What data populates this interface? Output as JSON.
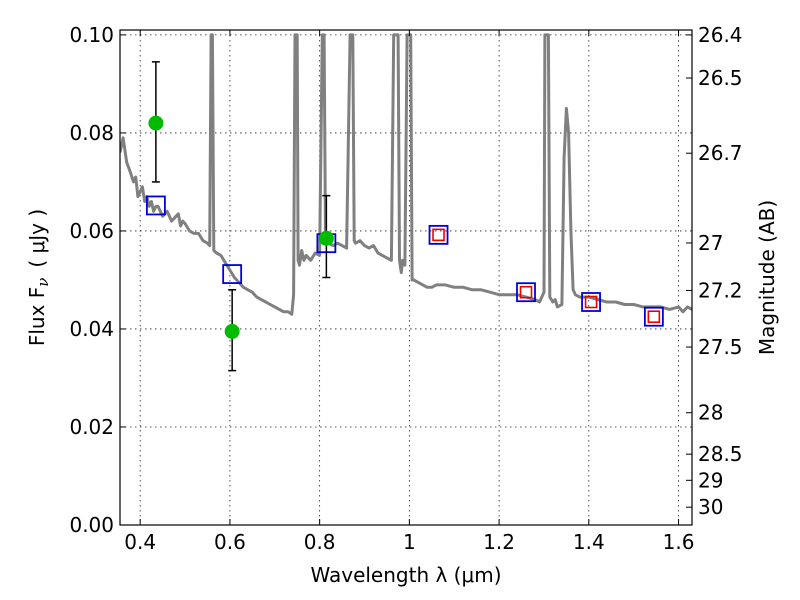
{
  "chart_data": {
    "type": "scatter",
    "xlabel": "Wavelength  λ (μm)",
    "ylabel": "Flux  F",
    "ylabel_sub": "ν",
    "ylabel_unit": "( μJy )",
    "y2label": "Magnitude (AB)",
    "xlim": [
      0.355,
      1.63
    ],
    "ylim": [
      0.0,
      0.101
    ],
    "grid": true,
    "x_ticks": [
      {
        "value": 0.4,
        "label": "0.4"
      },
      {
        "value": 0.6,
        "label": "0.6"
      },
      {
        "value": 0.8,
        "label": "0.8"
      },
      {
        "value": 1.0,
        "label": "1"
      },
      {
        "value": 1.2,
        "label": "1.2"
      },
      {
        "value": 1.4,
        "label": "1.4"
      },
      {
        "value": 1.6,
        "label": "1.6"
      }
    ],
    "y_ticks": [
      {
        "value": 0.0,
        "label": "0.00"
      },
      {
        "value": 0.02,
        "label": "0.02"
      },
      {
        "value": 0.04,
        "label": "0.04"
      },
      {
        "value": 0.06,
        "label": "0.06"
      },
      {
        "value": 0.08,
        "label": "0.08"
      },
      {
        "value": 0.1,
        "label": "0.10"
      }
    ],
    "y2_ticks": [
      {
        "value": 26.4,
        "label": "26.4"
      },
      {
        "value": 26.5,
        "label": "26.5"
      },
      {
        "value": 26.7,
        "label": "26.7"
      },
      {
        "value": 27.0,
        "label": "27"
      },
      {
        "value": 27.2,
        "label": "27.2"
      },
      {
        "value": 27.5,
        "label": "27.5"
      },
      {
        "value": 28.0,
        "label": "28"
      },
      {
        "value": 28.5,
        "label": "28.5"
      },
      {
        "value": 29.0,
        "label": "29"
      },
      {
        "value": 30.0,
        "label": "30"
      }
    ],
    "template_spectrum": {
      "color": "#808080",
      "points": [
        [
          0.355,
          0.076
        ],
        [
          0.362,
          0.079
        ],
        [
          0.37,
          0.074
        ],
        [
          0.378,
          0.072
        ],
        [
          0.385,
          0.07
        ],
        [
          0.39,
          0.071
        ],
        [
          0.395,
          0.067
        ],
        [
          0.4,
          0.068
        ],
        [
          0.405,
          0.069
        ],
        [
          0.41,
          0.066
        ],
        [
          0.415,
          0.067
        ],
        [
          0.42,
          0.065
        ],
        [
          0.425,
          0.066
        ],
        [
          0.43,
          0.064
        ],
        [
          0.435,
          0.065
        ],
        [
          0.44,
          0.065
        ],
        [
          0.45,
          0.063
        ],
        [
          0.46,
          0.064
        ],
        [
          0.47,
          0.062
        ],
        [
          0.48,
          0.063
        ],
        [
          0.485,
          0.0635
        ],
        [
          0.49,
          0.061
        ],
        [
          0.495,
          0.062
        ],
        [
          0.5,
          0.0615
        ],
        [
          0.51,
          0.06
        ],
        [
          0.52,
          0.0595
        ],
        [
          0.53,
          0.0595
        ],
        [
          0.54,
          0.058
        ],
        [
          0.55,
          0.0575
        ],
        [
          0.555,
          0.057
        ],
        [
          0.558,
          0.1
        ],
        [
          0.561,
          0.1
        ],
        [
          0.564,
          0.056
        ],
        [
          0.57,
          0.0555
        ],
        [
          0.58,
          0.055
        ],
        [
          0.59,
          0.0535
        ],
        [
          0.6,
          0.052
        ],
        [
          0.61,
          0.0505
        ],
        [
          0.62,
          0.0495
        ],
        [
          0.63,
          0.0485
        ],
        [
          0.64,
          0.048
        ],
        [
          0.65,
          0.0475
        ],
        [
          0.66,
          0.0465
        ],
        [
          0.67,
          0.046
        ],
        [
          0.68,
          0.0455
        ],
        [
          0.69,
          0.045
        ],
        [
          0.7,
          0.0445
        ],
        [
          0.71,
          0.044
        ],
        [
          0.72,
          0.0435
        ],
        [
          0.73,
          0.0435
        ],
        [
          0.738,
          0.043
        ],
        [
          0.742,
          0.047
        ],
        [
          0.745,
          0.1
        ],
        [
          0.75,
          0.1
        ],
        [
          0.752,
          0.054
        ],
        [
          0.755,
          0.053
        ],
        [
          0.76,
          0.056
        ],
        [
          0.765,
          0.054
        ],
        [
          0.77,
          0.055
        ],
        [
          0.78,
          0.054
        ],
        [
          0.79,
          0.0555
        ],
        [
          0.8,
          0.055
        ],
        [
          0.806,
          0.1
        ],
        [
          0.81,
          0.1
        ],
        [
          0.813,
          0.058
        ],
        [
          0.82,
          0.0575
        ],
        [
          0.83,
          0.057
        ],
        [
          0.84,
          0.0575
        ],
        [
          0.85,
          0.057
        ],
        [
          0.86,
          0.0565
        ],
        [
          0.868,
          0.1
        ],
        [
          0.874,
          0.1
        ],
        [
          0.877,
          0.058
        ],
        [
          0.88,
          0.0575
        ],
        [
          0.89,
          0.058
        ],
        [
          0.9,
          0.057
        ],
        [
          0.91,
          0.0565
        ],
        [
          0.92,
          0.057
        ],
        [
          0.93,
          0.0555
        ],
        [
          0.94,
          0.055
        ],
        [
          0.95,
          0.0545
        ],
        [
          0.96,
          0.054
        ],
        [
          0.965,
          0.1
        ],
        [
          0.975,
          0.1
        ],
        [
          0.978,
          0.054
        ],
        [
          0.982,
          0.0515
        ],
        [
          0.985,
          0.054
        ],
        [
          0.99,
          0.053
        ],
        [
          0.995,
          0.1
        ],
        [
          1.003,
          0.1
        ],
        [
          1.006,
          0.05
        ],
        [
          1.01,
          0.05
        ],
        [
          1.02,
          0.0495
        ],
        [
          1.03,
          0.049
        ],
        [
          1.04,
          0.0485
        ],
        [
          1.05,
          0.0485
        ],
        [
          1.06,
          0.049
        ],
        [
          1.08,
          0.049
        ],
        [
          1.1,
          0.0485
        ],
        [
          1.12,
          0.0485
        ],
        [
          1.14,
          0.048
        ],
        [
          1.16,
          0.048
        ],
        [
          1.18,
          0.0475
        ],
        [
          1.2,
          0.047
        ],
        [
          1.22,
          0.047
        ],
        [
          1.24,
          0.047
        ],
        [
          1.26,
          0.0465
        ],
        [
          1.28,
          0.046
        ],
        [
          1.29,
          0.0455
        ],
        [
          1.3,
          0.0475
        ],
        [
          1.302,
          0.1
        ],
        [
          1.31,
          0.1
        ],
        [
          1.313,
          0.0465
        ],
        [
          1.32,
          0.0455
        ],
        [
          1.325,
          0.046
        ],
        [
          1.33,
          0.0445
        ],
        [
          1.34,
          0.045
        ],
        [
          1.345,
          0.075
        ],
        [
          1.35,
          0.085
        ],
        [
          1.355,
          0.08
        ],
        [
          1.36,
          0.06
        ],
        [
          1.365,
          0.048
        ],
        [
          1.37,
          0.047
        ],
        [
          1.38,
          0.0465
        ],
        [
          1.4,
          0.0465
        ],
        [
          1.42,
          0.046
        ],
        [
          1.44,
          0.0455
        ],
        [
          1.46,
          0.0455
        ],
        [
          1.48,
          0.045
        ],
        [
          1.5,
          0.045
        ],
        [
          1.52,
          0.0445
        ],
        [
          1.54,
          0.0445
        ],
        [
          1.56,
          0.0445
        ],
        [
          1.58,
          0.044
        ],
        [
          1.6,
          0.0445
        ],
        [
          1.61,
          0.0435
        ],
        [
          1.62,
          0.0445
        ],
        [
          1.63,
          0.044
        ]
      ]
    },
    "observed": {
      "color": "#00bb00",
      "points": [
        {
          "x": 0.435,
          "y": 0.082,
          "yerr_low": 0.07,
          "yerr_high": 0.0945
        },
        {
          "x": 0.605,
          "y": 0.0395,
          "yerr_low": 0.0315,
          "yerr_high": 0.048
        },
        {
          "x": 0.815,
          "y": 0.0585,
          "yerr_low": 0.0505,
          "yerr_high": 0.0672
        }
      ]
    },
    "model_blue": {
      "color": "#0000dd",
      "points": [
        {
          "x": 0.435,
          "y": 0.0652
        },
        {
          "x": 0.605,
          "y": 0.0512
        },
        {
          "x": 0.815,
          "y": 0.0575
        },
        {
          "x": 1.065,
          "y": 0.0592
        },
        {
          "x": 1.26,
          "y": 0.0475
        },
        {
          "x": 1.405,
          "y": 0.0455
        },
        {
          "x": 1.545,
          "y": 0.0425
        }
      ]
    },
    "model_red": {
      "color": "#ee0000",
      "points": [
        {
          "x": 1.065,
          "y": 0.0592
        },
        {
          "x": 1.26,
          "y": 0.0475
        },
        {
          "x": 1.405,
          "y": 0.0455
        },
        {
          "x": 1.545,
          "y": 0.0425
        }
      ]
    }
  }
}
